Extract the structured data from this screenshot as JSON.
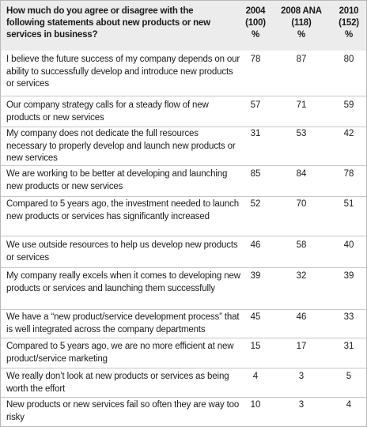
{
  "table": {
    "question": "How much do you agree or disagree with the following statements about new products or new services in business?",
    "columns": [
      {
        "year": "2004",
        "base": "(100)",
        "unit": "%"
      },
      {
        "year": "2008 ANA",
        "base": "(118)",
        "unit": "%"
      },
      {
        "year": "2010",
        "base": "(152)",
        "unit": "%"
      }
    ],
    "rows": [
      {
        "statement": "I believe the future success of my company depends on our ability to successfully develop and introduce new products or services",
        "values": [
          "78",
          "87",
          "80"
        ]
      },
      {
        "statement": "Our company strategy calls for a steady flow of new products or new services",
        "values": [
          "57",
          "71",
          "59"
        ]
      },
      {
        "statement": "My company does not dedicate the full resources necessary to properly develop and launch new products or new services",
        "values": [
          "31",
          "53",
          "42"
        ]
      },
      {
        "statement": "We are working to be better at developing and launching new products or new services",
        "values": [
          "85",
          "84",
          "78"
        ]
      },
      {
        "statement": "Compared to 5 years ago, the investment needed to launch new products or services has significantly increased",
        "values": [
          "52",
          "70",
          "51"
        ]
      },
      {
        "statement": "We use outside resources to help us develop new products or services",
        "values": [
          "46",
          "58",
          "40"
        ]
      },
      {
        "statement": "My company really excels when it comes to developing new products or services and launching them successfully",
        "values": [
          "39",
          "32",
          "39"
        ]
      },
      {
        "statement": "We have a “new product/service development process” that is well integrated across the company departments",
        "values": [
          "45",
          "46",
          "33"
        ]
      },
      {
        "statement": "Compared to 5 years ago, we are no more efficient at new product/service marketing",
        "values": [
          "15",
          "17",
          "31"
        ]
      },
      {
        "statement": "We really don’t look at new products or services as being worth the effort",
        "values": [
          "4",
          "3",
          "5"
        ]
      },
      {
        "statement": "New products or new services fail so often they are way too risky",
        "values": [
          "10",
          "3",
          "4"
        ]
      }
    ]
  }
}
